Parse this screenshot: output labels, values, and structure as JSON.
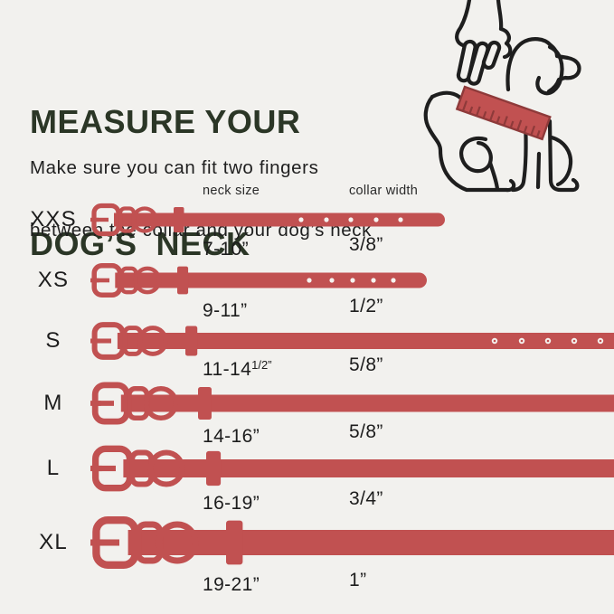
{
  "title": {
    "line1": "MEASURE YOUR",
    "line2": "DOG’S  NECK"
  },
  "subtitle": {
    "line1": "Make sure you can fit two fingers",
    "line2": "between the collar and your dog’s neck"
  },
  "columns": {
    "neck": "neck size",
    "width": "collar width"
  },
  "rows": [
    {
      "label": "XXS",
      "neck": "7-10”",
      "neck_sup": "",
      "width": "3/8”"
    },
    {
      "label": "XS",
      "neck": "9-11”",
      "neck_sup": "",
      "width": "1/2”"
    },
    {
      "label": "S",
      "neck": "11-14",
      "neck_sup": "1/2”",
      "width": "5/8”"
    },
    {
      "label": "M",
      "neck": "14-16”",
      "neck_sup": "",
      "width": "5/8”"
    },
    {
      "label": "L",
      "neck": "16-19”",
      "neck_sup": "",
      "width": "3/4”"
    },
    {
      "label": "XL",
      "neck": "19-21”",
      "neck_sup": "",
      "width": "1”"
    }
  ],
  "illustration": {
    "name": "hand-measuring-dog-neck-with-ruler"
  },
  "colors": {
    "background": "#F2F1EE",
    "collar_red": "#C15151",
    "ruler_dark": "#8E3A3A",
    "line_art": "#1E1E1E",
    "title_green": "#2B3626",
    "hole_white": "#F5F3F0"
  }
}
